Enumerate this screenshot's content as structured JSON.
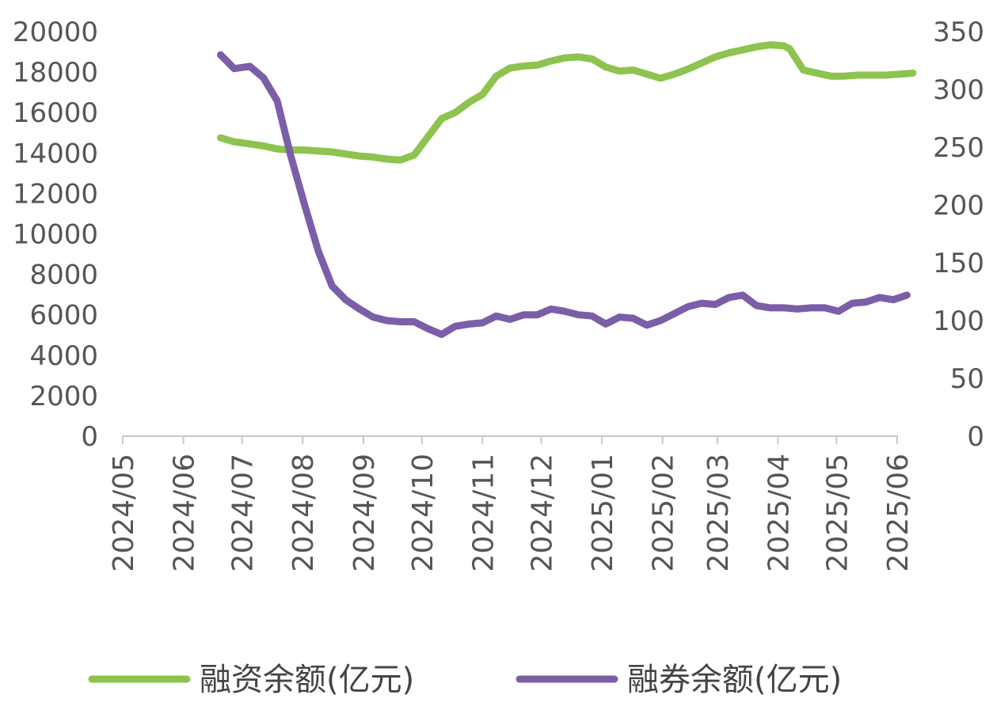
{
  "chart_data": {
    "type": "line",
    "x_ticks": [
      "2024/05",
      "2024/06",
      "2024/07",
      "2024/08",
      "2024/09",
      "2024/10",
      "2024/11",
      "2024/12",
      "2025/01",
      "2025/02",
      "2025/03",
      "2025/04",
      "2025/05",
      "2025/06"
    ],
    "y_left_ticks": [
      "0",
      "2000",
      "4000",
      "6000",
      "8000",
      "10000",
      "12000",
      "14000",
      "16000",
      "18000",
      "20000"
    ],
    "y_right_ticks": [
      "0",
      "50",
      "100",
      "150",
      "200",
      "250",
      "300",
      "350"
    ],
    "ylim_left": [
      0,
      20000
    ],
    "ylim_right": [
      0,
      350
    ],
    "grid": false,
    "legend_position": "bottom",
    "series": [
      {
        "name": "融资余额(亿元)",
        "axis": "left",
        "color": "#8dc34e",
        "points": [
          [
            "2024-06-20",
            14750
          ],
          [
            "2024-06-27",
            14550
          ],
          [
            "2024-07-05",
            14450
          ],
          [
            "2024-07-12",
            14350
          ],
          [
            "2024-07-19",
            14200
          ],
          [
            "2024-07-26",
            14150
          ],
          [
            "2024-08-02",
            14150
          ],
          [
            "2024-08-09",
            14100
          ],
          [
            "2024-08-16",
            14050
          ],
          [
            "2024-08-23",
            13950
          ],
          [
            "2024-08-30",
            13850
          ],
          [
            "2024-09-06",
            13800
          ],
          [
            "2024-09-13",
            13700
          ],
          [
            "2024-09-20",
            13650
          ],
          [
            "2024-09-27",
            13900
          ],
          [
            "2024-10-04",
            14800
          ],
          [
            "2024-10-11",
            15700
          ],
          [
            "2024-10-18",
            16000
          ],
          [
            "2024-10-25",
            16500
          ],
          [
            "2024-11-01",
            16900
          ],
          [
            "2024-11-08",
            17800
          ],
          [
            "2024-11-15",
            18200
          ],
          [
            "2024-11-22",
            18300
          ],
          [
            "2024-11-29",
            18350
          ],
          [
            "2024-12-06",
            18550
          ],
          [
            "2024-12-13",
            18700
          ],
          [
            "2024-12-20",
            18750
          ],
          [
            "2024-12-27",
            18650
          ],
          [
            "2025-01-03",
            18250
          ],
          [
            "2025-01-10",
            18050
          ],
          [
            "2025-01-17",
            18100
          ],
          [
            "2025-01-24",
            17900
          ],
          [
            "2025-01-31",
            17700
          ],
          [
            "2025-02-07",
            17900
          ],
          [
            "2025-02-14",
            18150
          ],
          [
            "2025-02-21",
            18450
          ],
          [
            "2025-02-28",
            18750
          ],
          [
            "2025-03-07",
            18950
          ],
          [
            "2025-03-14",
            19100
          ],
          [
            "2025-03-21",
            19250
          ],
          [
            "2025-03-28",
            19350
          ],
          [
            "2025-04-04",
            19300
          ],
          [
            "2025-04-07",
            19150
          ],
          [
            "2025-04-14",
            18100
          ],
          [
            "2025-04-21",
            17950
          ],
          [
            "2025-04-28",
            17800
          ],
          [
            "2025-05-05",
            17800
          ],
          [
            "2025-05-12",
            17850
          ],
          [
            "2025-05-19",
            17850
          ],
          [
            "2025-05-26",
            17850
          ],
          [
            "2025-06-02",
            17900
          ],
          [
            "2025-06-09",
            17950
          ]
        ]
      },
      {
        "name": "融券余额(亿元)",
        "axis": "right",
        "color": "#7b5ea7",
        "points": [
          [
            "2024-06-20",
            330
          ],
          [
            "2024-06-27",
            318
          ],
          [
            "2024-07-05",
            320
          ],
          [
            "2024-07-12",
            310
          ],
          [
            "2024-07-19",
            290
          ],
          [
            "2024-07-26",
            242
          ],
          [
            "2024-08-02",
            200
          ],
          [
            "2024-08-09",
            160
          ],
          [
            "2024-08-16",
            130
          ],
          [
            "2024-08-23",
            118
          ],
          [
            "2024-08-30",
            110
          ],
          [
            "2024-09-06",
            103
          ],
          [
            "2024-09-13",
            100
          ],
          [
            "2024-09-20",
            99
          ],
          [
            "2024-09-27",
            99
          ],
          [
            "2024-10-04",
            93
          ],
          [
            "2024-10-11",
            88
          ],
          [
            "2024-10-18",
            95
          ],
          [
            "2024-10-25",
            97
          ],
          [
            "2024-11-01",
            98
          ],
          [
            "2024-11-08",
            104
          ],
          [
            "2024-11-15",
            101
          ],
          [
            "2024-11-22",
            105
          ],
          [
            "2024-11-29",
            105
          ],
          [
            "2024-12-06",
            110
          ],
          [
            "2024-12-13",
            108
          ],
          [
            "2024-12-20",
            105
          ],
          [
            "2024-12-27",
            104
          ],
          [
            "2025-01-03",
            97
          ],
          [
            "2025-01-10",
            103
          ],
          [
            "2025-01-17",
            102
          ],
          [
            "2025-01-24",
            96
          ],
          [
            "2025-01-31",
            100
          ],
          [
            "2025-02-07",
            106
          ],
          [
            "2025-02-14",
            112
          ],
          [
            "2025-02-21",
            115
          ],
          [
            "2025-02-28",
            114
          ],
          [
            "2025-03-07",
            120
          ],
          [
            "2025-03-14",
            122
          ],
          [
            "2025-03-21",
            113
          ],
          [
            "2025-03-28",
            111
          ],
          [
            "2025-04-04",
            111
          ],
          [
            "2025-04-11",
            110
          ],
          [
            "2025-04-18",
            111
          ],
          [
            "2025-04-25",
            111
          ],
          [
            "2025-05-02",
            108
          ],
          [
            "2025-05-09",
            115
          ],
          [
            "2025-05-16",
            116
          ],
          [
            "2025-05-23",
            120
          ],
          [
            "2025-05-30",
            118
          ],
          [
            "2025-06-06",
            122
          ]
        ]
      }
    ]
  }
}
